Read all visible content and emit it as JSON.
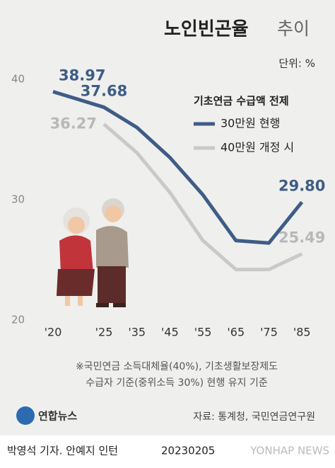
{
  "chart_data": {
    "type": "line",
    "title": "노인빈곤율",
    "title_suffix": "추이",
    "unit": "단위: %",
    "legend_title": "기초연금 수급액 전제",
    "categories": [
      "'20",
      "'25",
      "'35",
      "'45",
      "'55",
      "'65",
      "'75",
      "'85"
    ],
    "series": [
      {
        "name": "30만원 현행",
        "color": "#3e5c86",
        "values": [
          38.97,
          37.68,
          36.0,
          33.5,
          30.4,
          26.6,
          26.4,
          29.8
        ],
        "value_labels": [
          "38.97",
          "37.68",
          null,
          null,
          null,
          null,
          null,
          "29.80"
        ]
      },
      {
        "name": "40만원 개정 시",
        "color": "#c9c9c9",
        "values": [
          null,
          36.27,
          33.9,
          30.6,
          26.6,
          24.2,
          24.2,
          25.49
        ],
        "value_labels": [
          null,
          "36.27",
          null,
          null,
          null,
          null,
          null,
          "25.49"
        ]
      }
    ],
    "ylim": [
      20,
      40
    ],
    "yticks": [
      20,
      30,
      40
    ],
    "grid": false,
    "footnote": [
      "※국민연금 소득대체율(40%), 기초생활보장제도",
      "수급자 기준(중위소득 30%) 현행 유지 기준"
    ],
    "logo": "연합뉴스",
    "source": "자료: 통계청, 국민연금연구원",
    "credit": "박영석 기자. 안예지 인턴",
    "date": "20230205",
    "watermark": "YONHAP NEWS"
  }
}
